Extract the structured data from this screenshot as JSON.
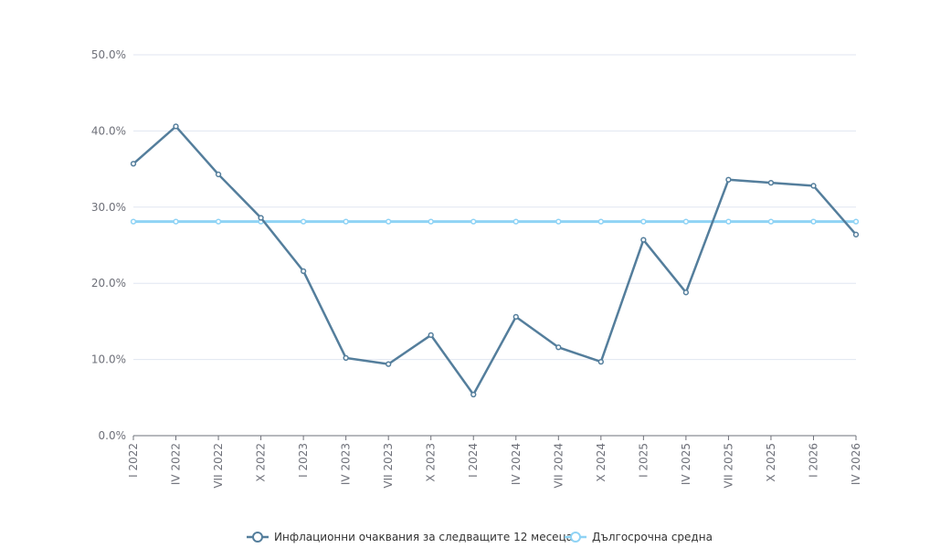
{
  "chart_data": {
    "type": "line",
    "categories": [
      "I 2022",
      "IV 2022",
      "VII 2022",
      "X 2022",
      "I 2023",
      "IV 2023",
      "VII 2023",
      "X 2023",
      "I 2024",
      "IV 2024",
      "VII 2024",
      "X 2024",
      "I 2025",
      "IV 2025",
      "VII 2025",
      "X 2025",
      "I 2026",
      "IV 2026"
    ],
    "y_ticks": [
      "0.0%",
      "10.0%",
      "20.0%",
      "30.0%",
      "40.0%",
      "50.0%"
    ],
    "ylim": [
      0,
      50
    ],
    "grid": true,
    "legend_position": "bottom-center",
    "series": [
      {
        "name": "Инфлационни очаквания за следващите 12 месеца",
        "color": "#547e9c",
        "values": [
          35.7,
          40.6,
          34.3,
          28.6,
          21.6,
          10.2,
          9.4,
          13.2,
          5.4,
          15.6,
          11.6,
          9.7,
          25.7,
          18.8,
          33.6,
          33.2,
          32.8,
          26.4
        ]
      },
      {
        "name": "Дългосрочна средна",
        "color": "#8fd3f5",
        "values": [
          28.1,
          28.1,
          28.1,
          28.1,
          28.1,
          28.1,
          28.1,
          28.1,
          28.1,
          28.1,
          28.1,
          28.1,
          28.1,
          28.1,
          28.1,
          28.1,
          28.1,
          28.1
        ]
      }
    ]
  }
}
